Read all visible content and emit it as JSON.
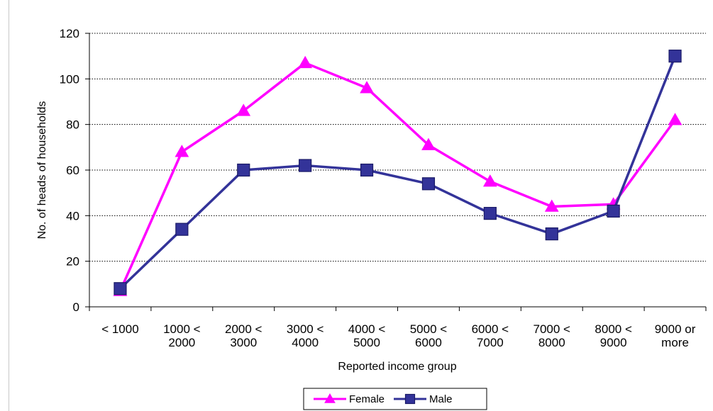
{
  "chart_data": {
    "type": "line",
    "title": "",
    "xlabel": "Reported income group",
    "ylabel": "No. of heads of households",
    "ylim": [
      0,
      120
    ],
    "yticks": [
      0,
      20,
      40,
      60,
      80,
      100,
      120
    ],
    "grid": "horizontal dotted",
    "legend_position": "bottom-center",
    "categories": [
      [
        "< 1000"
      ],
      [
        "1000 <",
        "2000"
      ],
      [
        "2000 <",
        "3000"
      ],
      [
        "3000 <",
        "4000"
      ],
      [
        "4000 <",
        "5000"
      ],
      [
        "5000 <",
        "6000"
      ],
      [
        "6000 <",
        "7000"
      ],
      [
        "7000 <",
        "8000"
      ],
      [
        "8000 <",
        "9000"
      ],
      [
        "9000 or",
        "more"
      ]
    ],
    "series": [
      {
        "name": "Female",
        "color": "#ff00ff",
        "marker": "triangle",
        "values": [
          7,
          68,
          86,
          107,
          96,
          71,
          55,
          44,
          45,
          82
        ]
      },
      {
        "name": "Male",
        "color": "#333399",
        "marker": "square",
        "values": [
          8,
          34,
          60,
          62,
          60,
          54,
          41,
          32,
          42,
          110
        ]
      }
    ]
  }
}
